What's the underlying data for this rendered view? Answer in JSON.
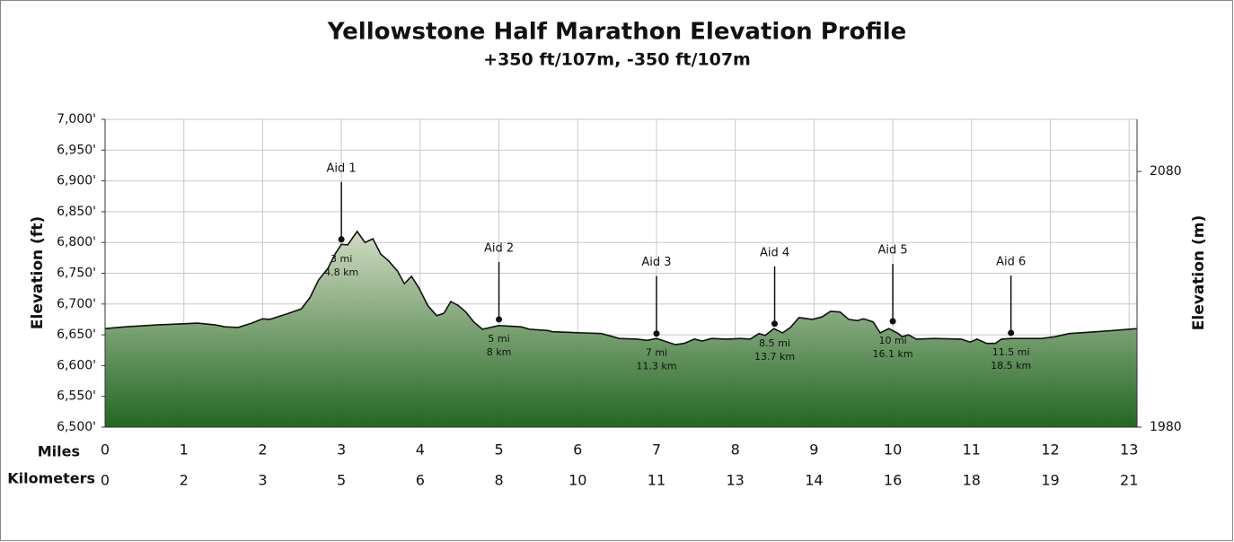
{
  "chart_data": {
    "type": "area",
    "title": "Yellowstone Half Marathon Elevation Profile",
    "subtitle": "+350 ft/107m, -350 ft/107m",
    "y_label": "Elevation (ft)",
    "y2_label": "Elevation (m)",
    "x_label": "Miles",
    "x2_label": "Kilometers",
    "xlim": [
      0,
      13.1
    ],
    "ylim": [
      6500,
      7000
    ],
    "y2lim": [
      1980,
      2100.4
    ],
    "xticks": [
      0,
      1,
      2,
      3,
      4,
      5,
      6,
      7,
      8,
      9,
      10,
      11,
      12,
      13
    ],
    "km_ticks": [
      0,
      2,
      3,
      5,
      6,
      8,
      10,
      11,
      13,
      14,
      16,
      18,
      19,
      21
    ],
    "yticks": [
      {
        "value": 6500,
        "label": "6,500'"
      },
      {
        "value": 6550,
        "label": "6,550'"
      },
      {
        "value": 6600,
        "label": "6,600'"
      },
      {
        "value": 6650,
        "label": "6,650'"
      },
      {
        "value": 6700,
        "label": "6,700'"
      },
      {
        "value": 6750,
        "label": "6,750'"
      },
      {
        "value": 6800,
        "label": "6,800'"
      },
      {
        "value": 6850,
        "label": "6,850'"
      },
      {
        "value": 6900,
        "label": "6,900'"
      },
      {
        "value": 6950,
        "label": "6,950'"
      },
      {
        "value": 7000,
        "label": "7,000'"
      }
    ],
    "y2ticks": [
      1980,
      2080
    ],
    "grid": true,
    "colors": {
      "top": "#cfd9c0",
      "bottom": "#175f17",
      "line": "#111111"
    },
    "x": [
      0,
      0.26,
      0.66,
      1.0,
      1.17,
      1.4,
      1.52,
      1.69,
      1.86,
      2.0,
      2.09,
      2.31,
      2.49,
      2.6,
      2.71,
      2.83,
      2.92,
      3.0,
      3.08,
      3.2,
      3.3,
      3.4,
      3.5,
      3.6,
      3.71,
      3.8,
      3.89,
      3.98,
      4.1,
      4.21,
      4.3,
      4.39,
      4.48,
      4.58,
      4.68,
      4.79,
      5.0,
      5.28,
      5.39,
      5.62,
      5.68,
      6.08,
      6.3,
      6.53,
      6.76,
      6.88,
      7.0,
      7.1,
      7.24,
      7.35,
      7.48,
      7.58,
      7.7,
      7.9,
      8.07,
      8.19,
      8.3,
      8.38,
      8.49,
      8.6,
      8.7,
      8.81,
      8.98,
      9.1,
      9.21,
      9.33,
      9.44,
      9.55,
      9.63,
      9.75,
      9.84,
      9.95,
      10.07,
      10.12,
      10.2,
      10.3,
      10.52,
      10.87,
      10.98,
      11.07,
      11.19,
      11.3,
      11.38,
      11.5,
      11.66,
      11.89,
      12.06,
      12.24,
      12.58,
      12.8,
      13.1
    ],
    "values": [
      6660,
      6663,
      6666,
      6668,
      6669,
      6666,
      6663,
      6662,
      6669,
      6676,
      6675,
      6684,
      6692,
      6710,
      6739,
      6758,
      6781,
      6797,
      6796,
      6818,
      6800,
      6806,
      6781,
      6770,
      6754,
      6733,
      6745,
      6727,
      6697,
      6681,
      6685,
      6704,
      6698,
      6687,
      6671,
      6659,
      6665,
      6663,
      6659,
      6657,
      6655,
      6653,
      6652,
      6644,
      6643,
      6641,
      6644,
      6640,
      6634,
      6636,
      6643,
      6640,
      6644,
      6643,
      6644,
      6643,
      6652,
      6649,
      6660,
      6653,
      6662,
      6678,
      6675,
      6679,
      6688,
      6687,
      6675,
      6673,
      6676,
      6671,
      6653,
      6660,
      6652,
      6647,
      6650,
      6643,
      6644,
      6643,
      6638,
      6643,
      6636,
      6636,
      6643,
      6644,
      6644,
      6644,
      6647,
      6652,
      6655,
      6657,
      6660
    ],
    "aid_stations": [
      {
        "name": "Aid 1",
        "mile": 3,
        "elevation": 6805,
        "mile_label": "3 mi",
        "km_label": "4.8 km"
      },
      {
        "name": "Aid 2",
        "mile": 5,
        "elevation": 6675,
        "mile_label": "5 mi",
        "km_label": "8 km"
      },
      {
        "name": "Aid 3",
        "mile": 7,
        "elevation": 6652,
        "mile_label": "7 mi",
        "km_label": "11.3 km"
      },
      {
        "name": "Aid 4",
        "mile": 8.5,
        "elevation": 6668,
        "mile_label": "8.5 mi",
        "km_label": "13.7 km"
      },
      {
        "name": "Aid 5",
        "mile": 10,
        "elevation": 6672,
        "mile_label": "10 mi",
        "km_label": "16.1 km"
      },
      {
        "name": "Aid 6",
        "mile": 11.5,
        "elevation": 6653,
        "mile_label": "11.5 mi",
        "km_label": "18.5 km"
      }
    ]
  }
}
